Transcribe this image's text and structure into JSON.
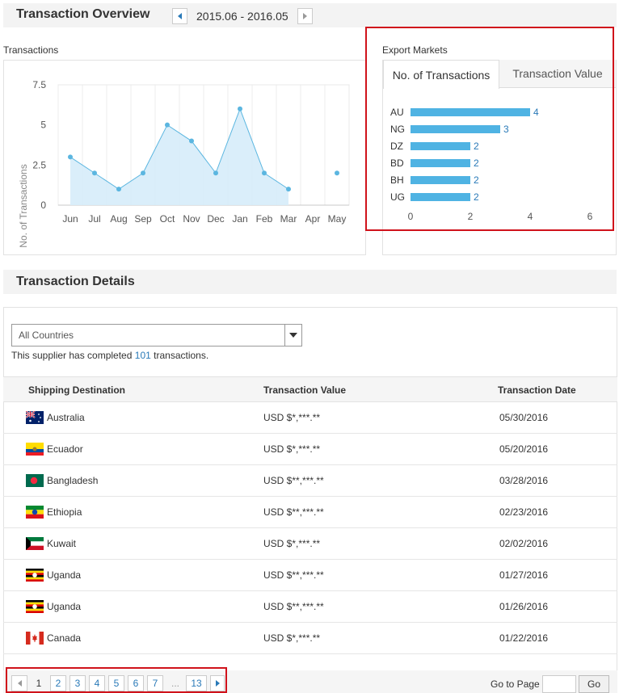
{
  "overview": {
    "title": "Transaction Overview",
    "date_range": "2015.06 - 2016.05"
  },
  "transactions_panel": {
    "label": "Transactions"
  },
  "export_panel": {
    "label": "Export Markets",
    "tabs": [
      {
        "label": "No. of Transactions",
        "active": true
      },
      {
        "label": "Transaction Value",
        "active": false
      }
    ]
  },
  "details": {
    "title": "Transaction Details",
    "filter": {
      "selected": "All Countries"
    },
    "summary": {
      "prefix": "This supplier has completed",
      "count": "101",
      "suffix": "transactions."
    },
    "columns": [
      "Shipping Destination",
      "Transaction Value",
      "Transaction Date"
    ],
    "rows": [
      {
        "flag": "australia-flag-icon",
        "country": "Australia",
        "value": "USD $*,***.**",
        "date": "05/30/2016"
      },
      {
        "flag": "ecuador-flag-icon",
        "country": "Ecuador",
        "value": "USD $*,***.**",
        "date": "05/20/2016"
      },
      {
        "flag": "bangladesh-flag-icon",
        "country": "Bangladesh",
        "value": "USD $**,***.**",
        "date": "03/28/2016"
      },
      {
        "flag": "ethiopia-flag-icon",
        "country": "Ethiopia",
        "value": "USD $**,***.**",
        "date": "02/23/2016"
      },
      {
        "flag": "kuwait-flag-icon",
        "country": "Kuwait",
        "value": "USD $*,***.**",
        "date": "02/02/2016"
      },
      {
        "flag": "uganda-flag-icon",
        "country": "Uganda",
        "value": "USD $**,***.**",
        "date": "01/27/2016"
      },
      {
        "flag": "uganda-flag-icon",
        "country": "Uganda",
        "value": "USD $**,***.**",
        "date": "01/26/2016"
      },
      {
        "flag": "canada-flag-icon",
        "country": "Canada",
        "value": "USD $*,***.**",
        "date": "01/22/2016"
      }
    ]
  },
  "pagination": {
    "pages": [
      "1",
      "2",
      "3",
      "4",
      "5",
      "6",
      "7"
    ],
    "current": "1",
    "ellipsis": "...",
    "last": "13",
    "goto_label": "Go to Page",
    "go_button": "Go"
  },
  "colors": {
    "accent": "#2a7ab8",
    "line": "#5bb6e0",
    "area_fill": "#d6ecf9",
    "bar": "#4fb3e3",
    "highlight": "#d0121b"
  },
  "chart_data": [
    {
      "type": "area",
      "title": "",
      "xlabel": "",
      "ylabel": "No. of Transactions",
      "categories": [
        "Jun",
        "Jul",
        "Aug",
        "Sep",
        "Oct",
        "Nov",
        "Dec",
        "Jan",
        "Feb",
        "Mar",
        "Apr",
        "May"
      ],
      "values": [
        3,
        2,
        1,
        2,
        5,
        4,
        2,
        6,
        2,
        1,
        null,
        2
      ],
      "yticks": [
        "0",
        "2.5",
        "5",
        "7.5"
      ],
      "ylim": [
        0,
        7.5
      ],
      "grid": "vertical"
    },
    {
      "type": "bar",
      "orientation": "horizontal",
      "categories": [
        "AU",
        "NG",
        "DZ",
        "BD",
        "BH",
        "UG"
      ],
      "values": [
        4,
        3,
        2,
        2,
        2,
        2
      ],
      "xticks": [
        "0",
        "2",
        "4",
        "6"
      ],
      "xlim": [
        0,
        6
      ]
    }
  ]
}
